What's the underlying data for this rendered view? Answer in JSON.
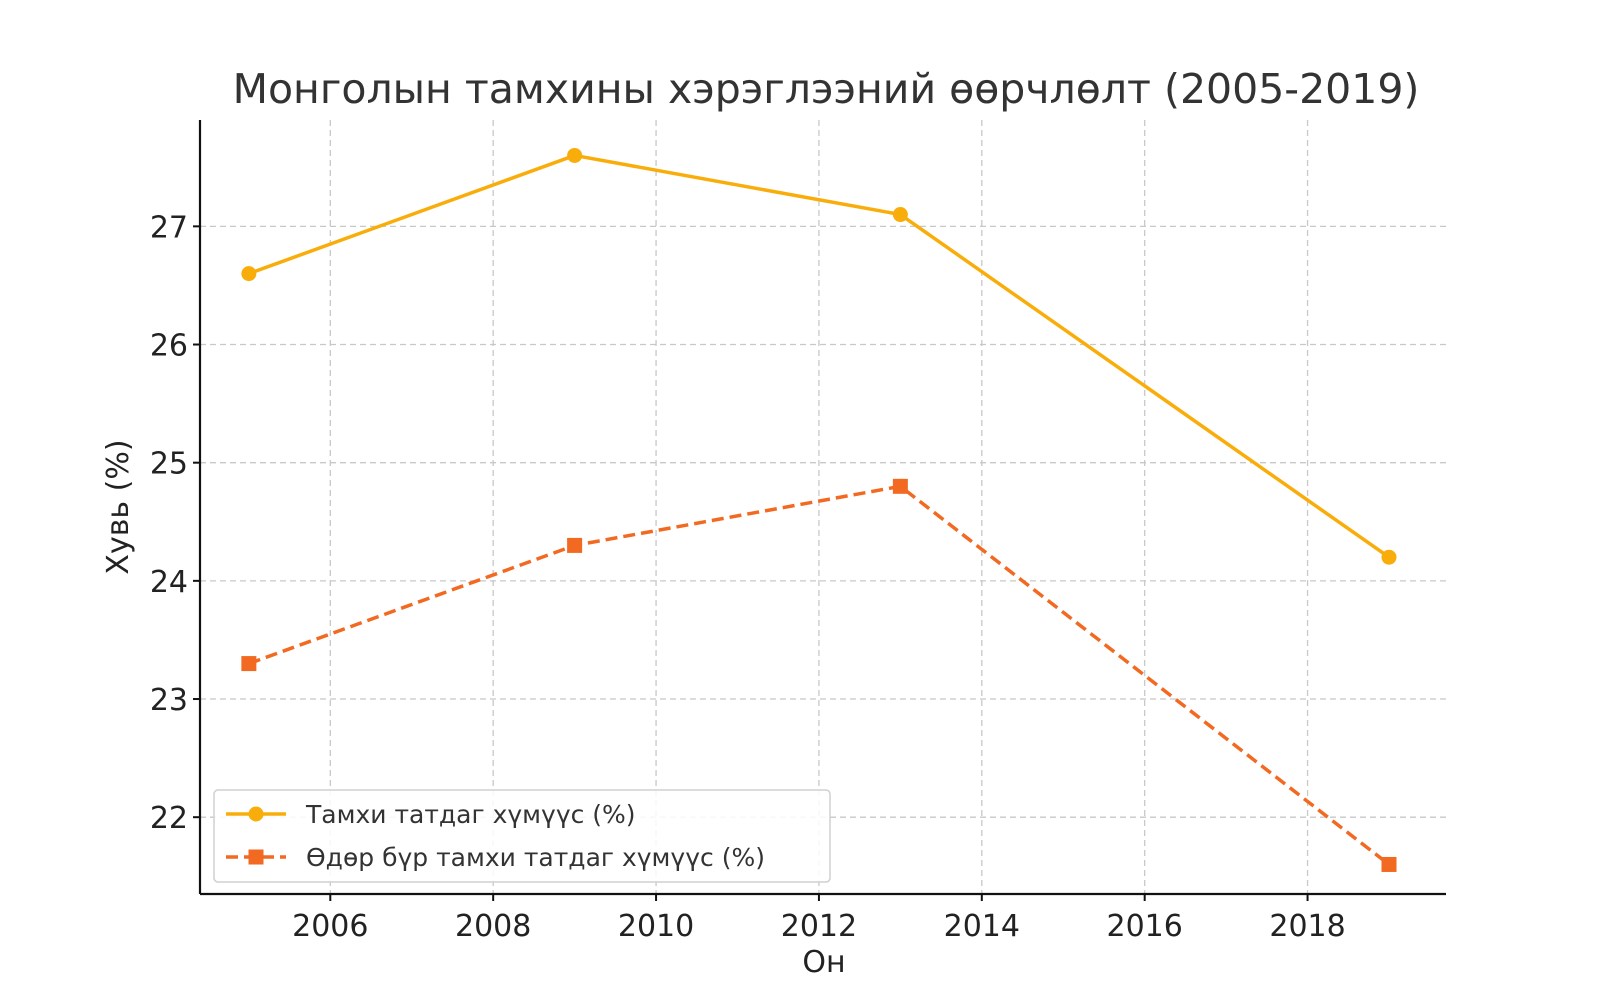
{
  "chart_data": {
    "type": "line",
    "title": "Монголын тамхины хэрэглээний өөрчлөлт (2005-2019)",
    "xlabel": "Он",
    "ylabel": "Хувь (%)",
    "x": [
      2005,
      2009,
      2013,
      2019
    ],
    "xlim": [
      2004.4,
      2019.7
    ],
    "ylim": [
      21.35,
      27.9
    ],
    "xticks": [
      2006,
      2008,
      2010,
      2012,
      2014,
      2016,
      2018
    ],
    "yticks": [
      22,
      23,
      24,
      25,
      26,
      27
    ],
    "grid": true,
    "legend_position": "lower-left",
    "series": [
      {
        "name": "Тамхи татдаг хүмүүс (%)",
        "values": [
          26.6,
          27.6,
          27.1,
          24.2
        ],
        "color": "#F9AD0A",
        "line_style": "solid",
        "marker": "circle"
      },
      {
        "name": "Өдөр бүр тамхи татдаг хүмүүс (%)",
        "values": [
          23.3,
          24.3,
          24.8,
          21.6
        ],
        "color": "#F26A22",
        "line_style": "dashed",
        "marker": "square"
      }
    ]
  }
}
